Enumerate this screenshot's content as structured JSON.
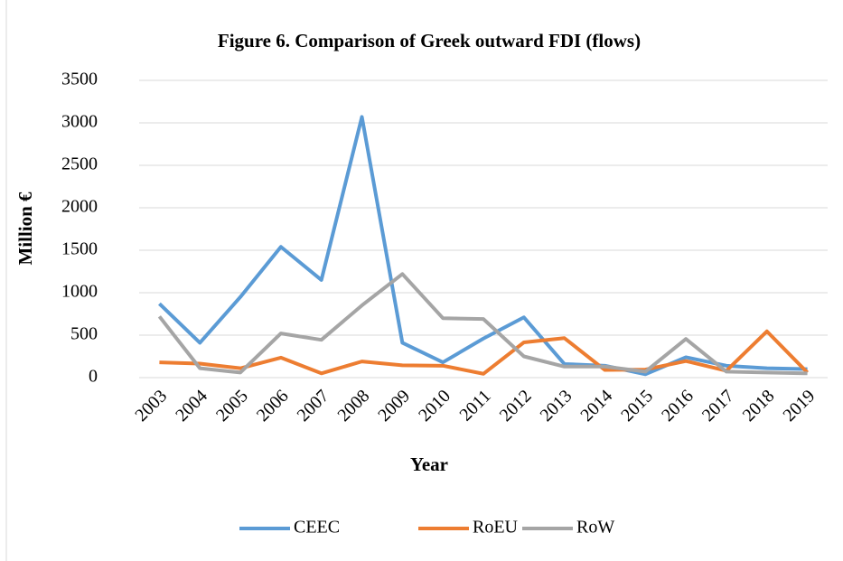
{
  "chart_data": {
    "type": "line",
    "title": "Figure 6. Comparison of Greek outward FDI (flows)",
    "x_label": "Year",
    "y_label": "Million €",
    "categories": [
      "2003",
      "2004",
      "2005",
      "2006",
      "2007",
      "2008",
      "2009",
      "2010",
      "2011",
      "2012",
      "2013",
      "2014",
      "2015",
      "2016",
      "2017",
      "2018",
      "2019"
    ],
    "series": [
      {
        "name": "CEEC",
        "color": "#5b9bd5",
        "values": [
          870,
          410,
          950,
          1540,
          1150,
          3070,
          410,
          180,
          460,
          710,
          160,
          140,
          40,
          240,
          140,
          110,
          100
        ]
      },
      {
        "name": "RoEU",
        "color": "#ed7d31",
        "values": [
          180,
          165,
          110,
          235,
          50,
          190,
          145,
          140,
          45,
          415,
          465,
          90,
          95,
          195,
          80,
          545,
          60
        ]
      },
      {
        "name": "RoW",
        "color": "#a5a5a5",
        "values": [
          720,
          110,
          60,
          520,
          445,
          850,
          1220,
          700,
          690,
          250,
          130,
          130,
          70,
          455,
          70,
          60,
          50
        ]
      }
    ],
    "ylim": [
      0,
      3500
    ],
    "yticks": [
      0,
      500,
      1000,
      1500,
      2000,
      2500,
      3000,
      3500
    ],
    "grid": true,
    "legend": "bottom"
  }
}
